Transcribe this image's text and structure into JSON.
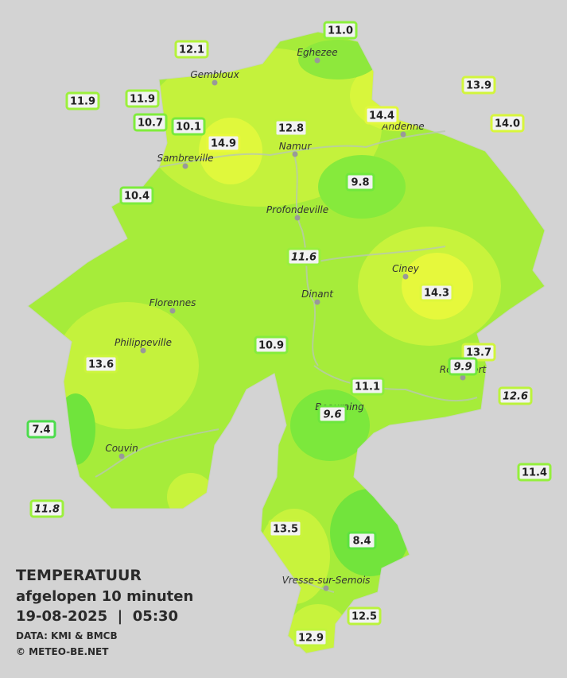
{
  "legend": {
    "title": "TEMPERATUUR",
    "subtitle": "afgelopen 10 minuten",
    "timestamp": "19-08-2025  |  05:30",
    "source": "DATA: KMI & BMCB",
    "copyright": "© METEO-BE.NET"
  },
  "cities": [
    "Eghezee",
    "Gembloux",
    "Andenne",
    "Namur",
    "Sambreville",
    "Profondeville",
    "Ciney",
    "Dinant",
    "Florennes",
    "Philippeville",
    "Rochefort",
    "Beauraing",
    "Couvin",
    "Vresse-sur-Semois"
  ],
  "stations": [
    {
      "value": "11.0",
      "color": "#8cf03c",
      "italic": false
    },
    {
      "value": "12.1",
      "color": "#b4f23c",
      "italic": false
    },
    {
      "value": "11.9",
      "color": "#9cf03c",
      "italic": false
    },
    {
      "value": "11.9",
      "color": "#9cf03c",
      "italic": false
    },
    {
      "value": "13.9",
      "color": "#d2f53c",
      "italic": false
    },
    {
      "value": "14.4",
      "color": "#e2f83c",
      "italic": false
    },
    {
      "value": "10.7",
      "color": "#80ec3c",
      "italic": false
    },
    {
      "value": "10.1",
      "color": "#78ea3c",
      "italic": false
    },
    {
      "value": "12.8",
      "color": "#c0f33c",
      "italic": false
    },
    {
      "value": "14.0",
      "color": "#d8f63c",
      "italic": false
    },
    {
      "value": "14.9",
      "color": "#e8f93c",
      "italic": false
    },
    {
      "value": "9.8",
      "color": "#70e83c",
      "italic": false
    },
    {
      "value": "10.4",
      "color": "#7ceb3c",
      "italic": false
    },
    {
      "value": "11.6",
      "color": "#98ef3c",
      "italic": true
    },
    {
      "value": "14.3",
      "color": "#dff73c",
      "italic": false
    },
    {
      "value": "13.7",
      "color": "#d0f53c",
      "italic": false
    },
    {
      "value": "9.9",
      "color": "#70e83c",
      "italic": true
    },
    {
      "value": "10.9",
      "color": "#84ec3c",
      "italic": false
    },
    {
      "value": "11.1",
      "color": "#8cee3c",
      "italic": false
    },
    {
      "value": "12.6",
      "color": "#bcf33c",
      "italic": true
    },
    {
      "value": "13.6",
      "color": "#ccf53c",
      "italic": false
    },
    {
      "value": "9.6",
      "color": "#6ce63c",
      "italic": true
    },
    {
      "value": "7.4",
      "color": "#4cdc4c",
      "italic": false
    },
    {
      "value": "11.4",
      "color": "#94ef3c",
      "italic": false
    },
    {
      "value": "11.8",
      "color": "#9cf03c",
      "italic": true
    },
    {
      "value": "13.5",
      "color": "#caf43c",
      "italic": false
    },
    {
      "value": "8.4",
      "color": "#5ce240",
      "italic": false
    },
    {
      "value": "12.5",
      "color": "#baf33c",
      "italic": false
    },
    {
      "value": "12.9",
      "color": "#c2f43c",
      "italic": false
    }
  ]
}
